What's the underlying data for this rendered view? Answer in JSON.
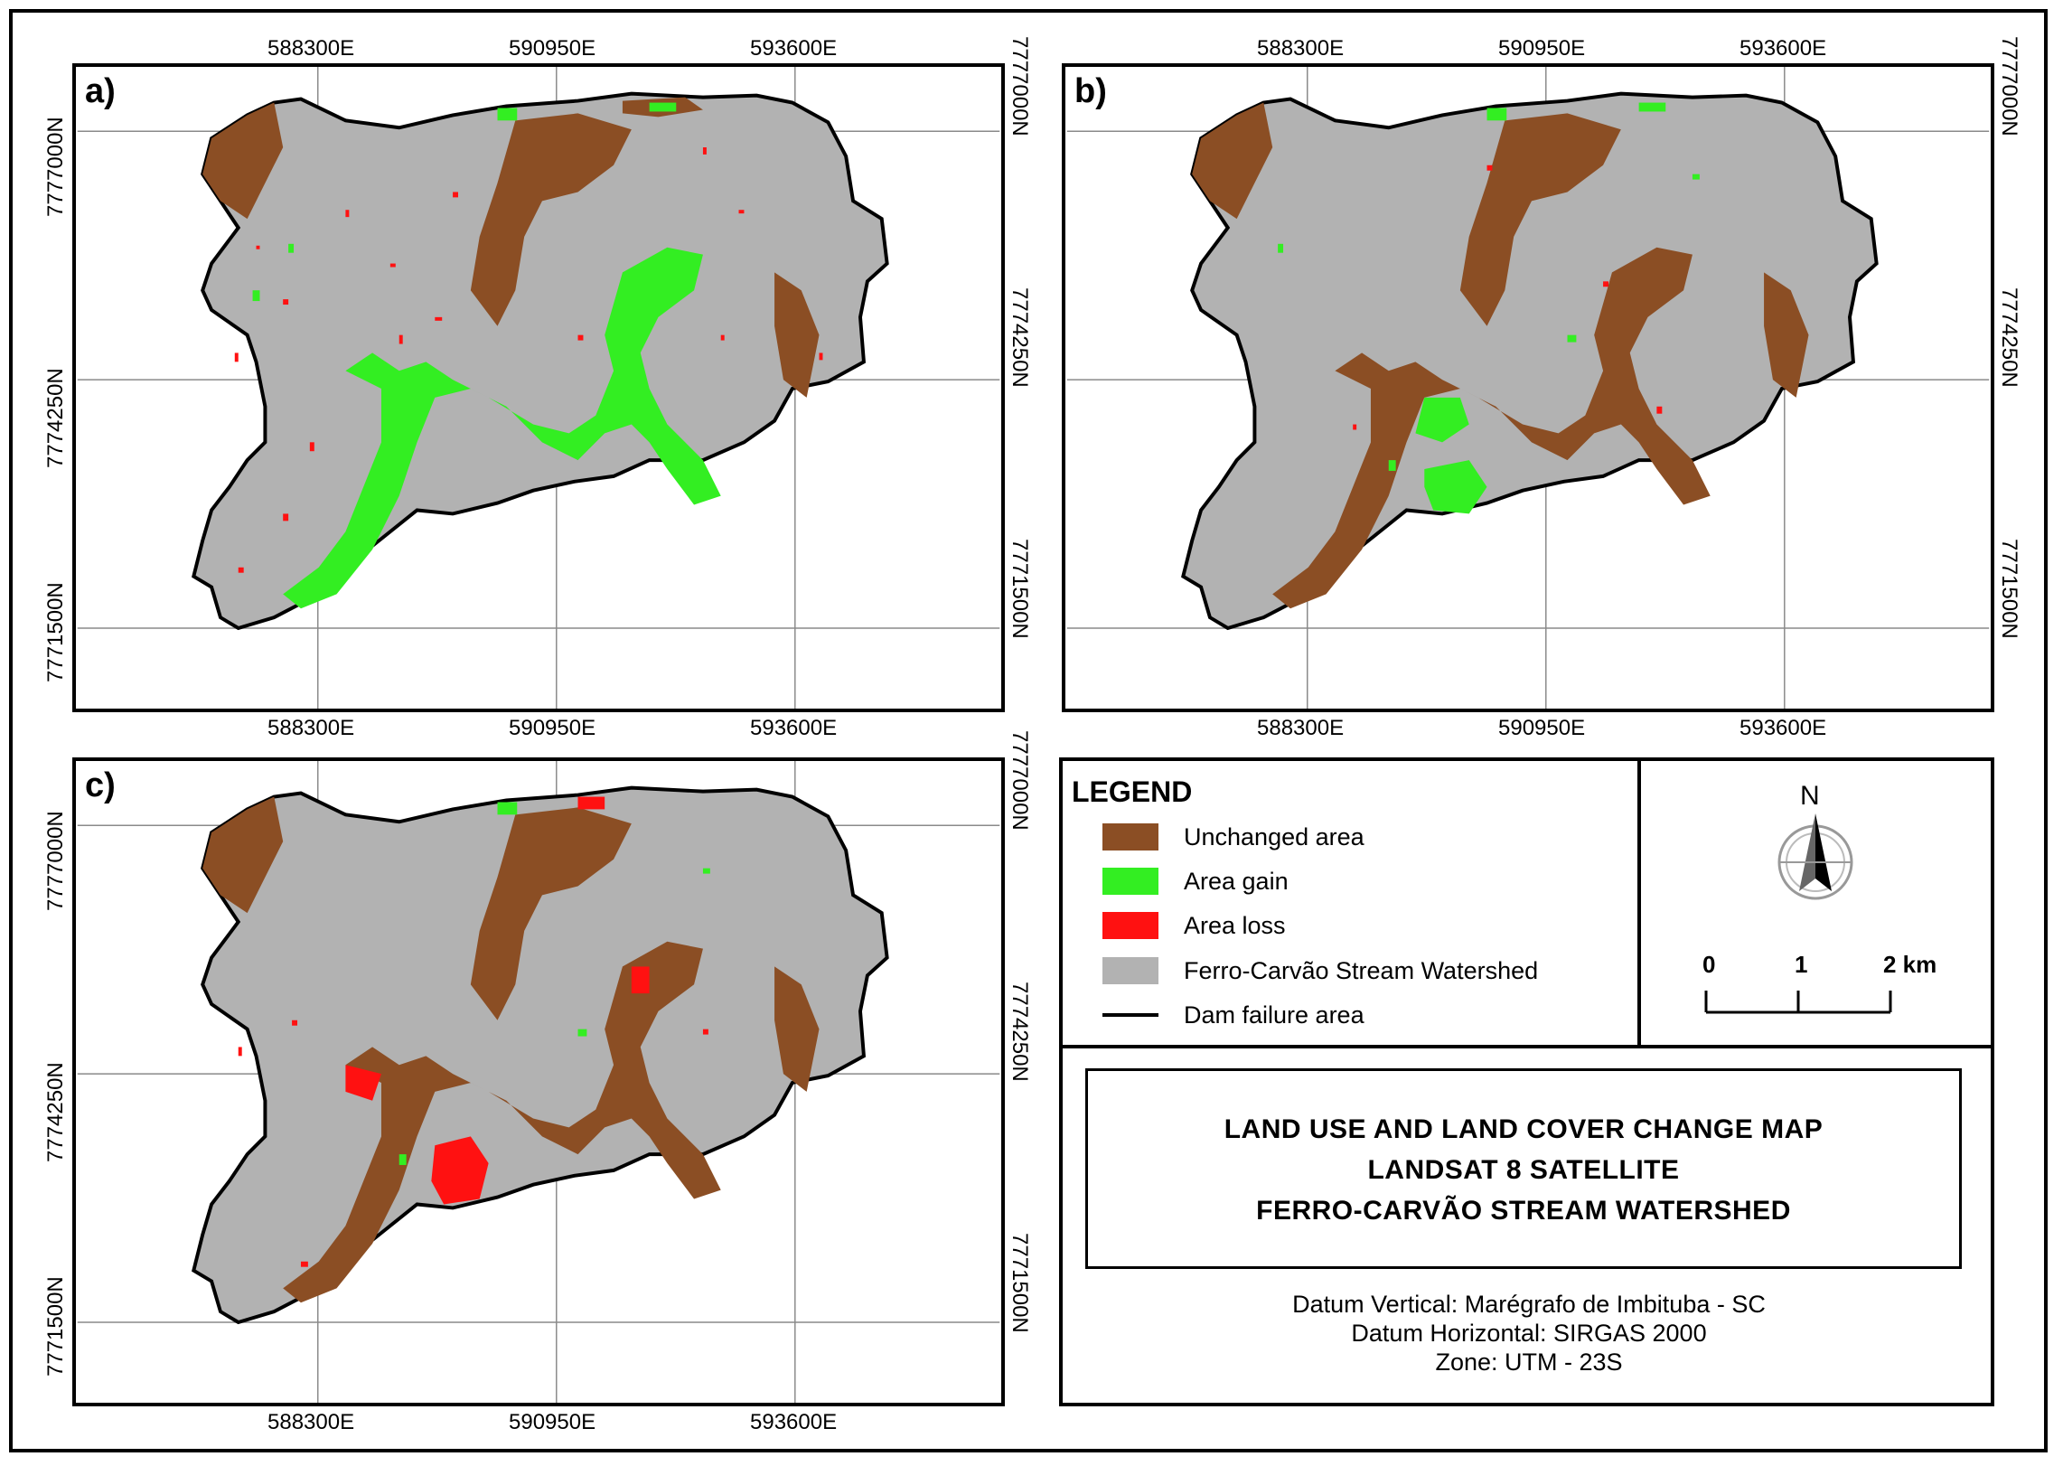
{
  "panels": [
    {
      "label": "a)"
    },
    {
      "label": "b)"
    },
    {
      "label": "c)"
    }
  ],
  "x_ticks": [
    "588300E",
    "590950E",
    "593600E"
  ],
  "y_ticks": [
    "7777000N",
    "7774250N",
    "7771500N"
  ],
  "legend": {
    "title": "LEGEND",
    "items": [
      {
        "label": "Unchanged area",
        "color": "#8B4E24"
      },
      {
        "label": "Area gain",
        "color": "#33EE22"
      },
      {
        "label": "Area loss",
        "color": "#FF1111"
      },
      {
        "label": "Ferro-Carvão Stream Watershed",
        "color": "#B2B2B2"
      },
      {
        "label": "Dam failure area",
        "color": "#000000"
      }
    ]
  },
  "north_arrow": {
    "label": "N"
  },
  "scale_bar": {
    "labels": [
      "0",
      "1",
      "2 km"
    ]
  },
  "title_block": {
    "line1": "LAND USE AND LAND COVER CHANGE MAP",
    "line2": "LANDSAT 8  SATELLITE",
    "line3": "FERRO-CARVÃO STREAM WATERSHED"
  },
  "datum": {
    "vertical": "Datum Vertical: Marégrafo de Imbituba - SC",
    "horizontal": "Datum Horizontal: SIRGAS 2000",
    "zone": "Zone: UTM - 23S"
  }
}
